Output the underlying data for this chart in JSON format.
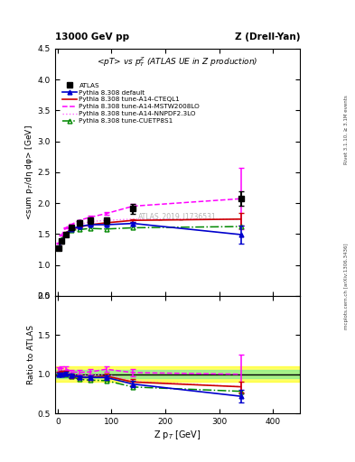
{
  "title_top_left": "13000 GeV pp",
  "title_top_right": "Z (Drell-Yan)",
  "plot_title": "<pT> vs p$_{T}^{Z}$ (ATLAS UE in Z production)",
  "ylabel_main": "<sum p$_{T}$/dη dφ> [GeV]",
  "ylabel_ratio": "Ratio to ATLAS",
  "xlabel": "Z p$_{T}$ [GeV]",
  "watermark": "ATLAS_2019_I1736531",
  "rivet_label": "Rivet 3.1.10, ≥ 3.1M events",
  "mcplots_label": "mcplots.cern.ch [arXiv:1306.3436]",
  "x_atlas": [
    2,
    7,
    15,
    25,
    40,
    60,
    90,
    140,
    340
  ],
  "y_atlas": [
    1.27,
    1.38,
    1.49,
    1.6,
    1.68,
    1.72,
    1.72,
    1.91,
    2.07
  ],
  "yerr_atlas": [
    0.03,
    0.03,
    0.03,
    0.04,
    0.04,
    0.05,
    0.05,
    0.08,
    0.12
  ],
  "x_mc": [
    2,
    7,
    15,
    25,
    40,
    60,
    90,
    140,
    340
  ],
  "y_default": [
    1.27,
    1.38,
    1.5,
    1.58,
    1.62,
    1.65,
    1.65,
    1.67,
    1.49
  ],
  "yerr_default": [
    0.01,
    0.01,
    0.01,
    0.01,
    0.01,
    0.01,
    0.02,
    0.03,
    0.15
  ],
  "y_cteql1": [
    1.28,
    1.4,
    1.52,
    1.57,
    1.61,
    1.65,
    1.68,
    1.72,
    1.74
  ],
  "yerr_cteql1": [
    0.01,
    0.01,
    0.01,
    0.01,
    0.01,
    0.01,
    0.02,
    0.02,
    0.1
  ],
  "y_mstw": [
    1.35,
    1.48,
    1.6,
    1.65,
    1.72,
    1.77,
    1.83,
    1.95,
    2.07
  ],
  "yerr_mstw": [
    0.01,
    0.01,
    0.01,
    0.01,
    0.01,
    0.02,
    0.02,
    0.03,
    0.5
  ],
  "y_nnpdf": [
    1.28,
    1.4,
    1.52,
    1.58,
    1.65,
    1.7,
    1.72,
    1.74,
    1.74
  ],
  "yerr_nnpdf": [
    0.01,
    0.01,
    0.01,
    0.01,
    0.01,
    0.01,
    0.02,
    0.02,
    0.1
  ],
  "y_cuetp8s1": [
    1.28,
    1.41,
    1.49,
    1.56,
    1.57,
    1.59,
    1.58,
    1.6,
    1.62
  ],
  "yerr_cuetp8s1": [
    0.01,
    0.01,
    0.01,
    0.01,
    0.01,
    0.01,
    0.02,
    0.03,
    0.1
  ],
  "color_atlas": "#000000",
  "color_default": "#0000cc",
  "color_cteql1": "#cc0000",
  "color_mstw": "#ff00ff",
  "color_nnpdf": "#ff66ff",
  "color_cuetp8s1": "#008800",
  "ylim_main": [
    0.5,
    4.5
  ],
  "ylim_ratio": [
    0.5,
    2.0
  ],
  "xlim": [
    -5,
    450
  ],
  "band_yellow": [
    0.9,
    1.1
  ],
  "band_green": [
    0.95,
    1.05
  ]
}
